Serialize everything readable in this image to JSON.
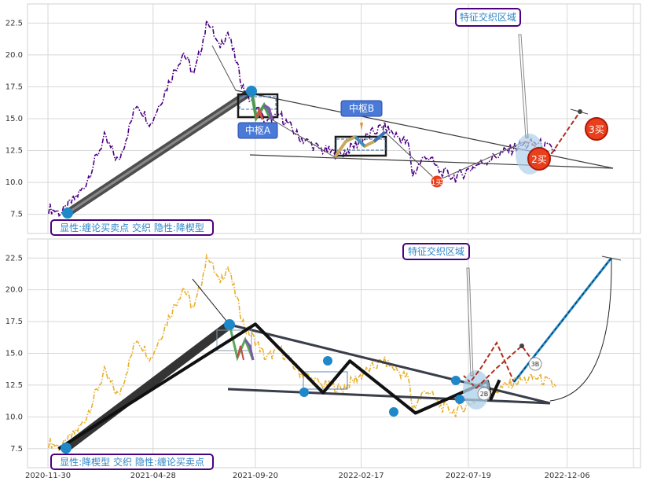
{
  "chart_data": [
    {
      "type": "line",
      "panel": "top",
      "yticks": [
        "7.5",
        "10.0",
        "12.5",
        "15.0",
        "17.5",
        "20.0",
        "22.5"
      ],
      "ylim": [
        6.0,
        24.0
      ],
      "xlim": [
        "2020-11-01",
        "2023-03-20"
      ],
      "grid": true,
      "annotations": {
        "feature_zone": "特征交织区域",
        "zhongshu_a": "中枢A",
        "zhongshu_b": "中枢B",
        "legend_note": "显性:缠论买卖点 交织 隐性:降楔型",
        "buy1": "1买",
        "buy2": "2买",
        "buy3": "3买"
      },
      "colors": {
        "price": "#4b0082",
        "stroke": "#3a3a3a",
        "buy_marker": "#e8401c",
        "highlight": "#aed0ea"
      },
      "price_anchors": [
        [
          "2020-12-01",
          8.0
        ],
        [
          "2020-12-20",
          7.6
        ],
        [
          "2021-01-20",
          9.6
        ],
        [
          "2021-02-18",
          13.5
        ],
        [
          "2021-03-10",
          11.6
        ],
        [
          "2021-04-05",
          16.2
        ],
        [
          "2021-04-25",
          14.6
        ],
        [
          "2021-05-20",
          17.8
        ],
        [
          "2021-06-10",
          20.2
        ],
        [
          "2021-06-25",
          18.4
        ],
        [
          "2021-07-15",
          22.8
        ],
        [
          "2021-07-30",
          20.6
        ],
        [
          "2021-08-12",
          21.8
        ],
        [
          "2021-09-05",
          17.0
        ],
        [
          "2021-09-20",
          16.0
        ],
        [
          "2021-10-05",
          14.6
        ],
        [
          "2021-10-25",
          15.3
        ],
        [
          "2021-11-20",
          13.6
        ],
        [
          "2021-12-20",
          12.6
        ],
        [
          "2022-01-20",
          12.2
        ],
        [
          "2022-02-20",
          13.4
        ],
        [
          "2022-03-20",
          14.4
        ],
        [
          "2022-04-10",
          13.6
        ],
        [
          "2022-04-25",
          13.0
        ],
        [
          "2022-05-01",
          10.6
        ],
        [
          "2022-05-20",
          12.2
        ],
        [
          "2022-06-10",
          10.8
        ],
        [
          "2022-07-01",
          10.4
        ],
        [
          "2022-08-01",
          11.4
        ],
        [
          "2022-09-01",
          12.2
        ],
        [
          "2022-09-25",
          12.8
        ],
        [
          "2022-10-25",
          13.1
        ],
        [
          "2022-11-20",
          12.4
        ]
      ]
    },
    {
      "type": "line",
      "panel": "bottom",
      "yticks": [
        "7.5",
        "10.0",
        "12.5",
        "15.0",
        "17.5",
        "20.0",
        "22.5"
      ],
      "ylim": [
        6.0,
        24.0
      ],
      "xlim": [
        "2020-11-01",
        "2023-03-20"
      ],
      "xticks": [
        "2020-11-30",
        "2021-04-28",
        "2021-09-20",
        "2022-02-17",
        "2022-07-19",
        "2022-12-06"
      ],
      "grid": true,
      "annotations": {
        "feature_zone": "特征交织区域",
        "legend_note": "显性:降楔型 交织 隐性:缠论买卖点",
        "label_3b": "3B",
        "label_2b": "2B"
      },
      "colors": {
        "price": "#e8b030",
        "stroke": "#1a1a1a",
        "node": "#1e88c8",
        "forecast": "#1e88c8"
      },
      "price_anchors": [
        [
          "2020-12-01",
          8.0
        ],
        [
          "2020-12-20",
          7.6
        ],
        [
          "2021-01-20",
          9.6
        ],
        [
          "2021-02-18",
          13.5
        ],
        [
          "2021-03-10",
          11.6
        ],
        [
          "2021-04-05",
          16.2
        ],
        [
          "2021-04-25",
          14.6
        ],
        [
          "2021-05-20",
          17.8
        ],
        [
          "2021-06-10",
          20.2
        ],
        [
          "2021-06-25",
          18.4
        ],
        [
          "2021-07-15",
          22.8
        ],
        [
          "2021-07-30",
          20.6
        ],
        [
          "2021-08-12",
          21.8
        ],
        [
          "2021-09-05",
          17.0
        ],
        [
          "2021-09-20",
          16.0
        ],
        [
          "2021-10-05",
          14.6
        ],
        [
          "2021-10-25",
          15.3
        ],
        [
          "2021-11-20",
          13.6
        ],
        [
          "2021-12-20",
          12.6
        ],
        [
          "2022-01-20",
          12.2
        ],
        [
          "2022-02-20",
          13.4
        ],
        [
          "2022-03-20",
          14.4
        ],
        [
          "2022-04-10",
          13.6
        ],
        [
          "2022-04-25",
          13.0
        ],
        [
          "2022-05-01",
          10.6
        ],
        [
          "2022-05-20",
          12.2
        ],
        [
          "2022-06-10",
          10.8
        ],
        [
          "2022-07-01",
          10.4
        ],
        [
          "2022-08-01",
          11.4
        ],
        [
          "2022-09-01",
          12.2
        ],
        [
          "2022-09-25",
          12.8
        ],
        [
          "2022-10-25",
          13.1
        ],
        [
          "2022-11-20",
          12.4
        ]
      ],
      "zigzag": [
        [
          "2020-12-15",
          7.5
        ],
        [
          "2021-09-20",
          17.3
        ],
        [
          "2021-12-25",
          11.9
        ],
        [
          "2022-02-01",
          14.4
        ],
        [
          "2022-05-05",
          10.3
        ],
        [
          "2022-08-15",
          12.8
        ],
        [
          "2022-08-20",
          11.4
        ],
        [
          "2022-09-01",
          12.9
        ]
      ]
    }
  ]
}
